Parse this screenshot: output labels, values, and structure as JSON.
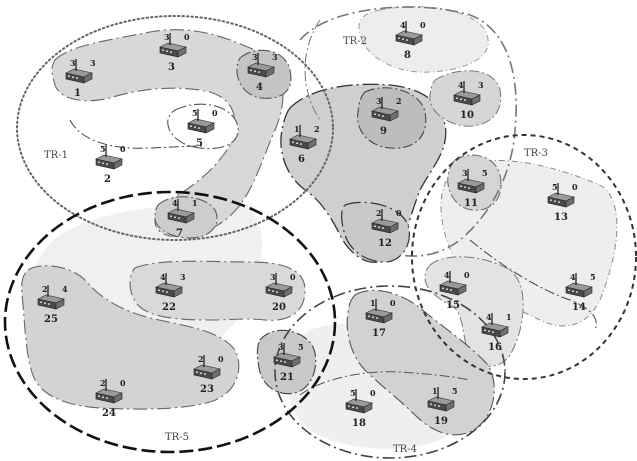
{
  "regions": [
    {
      "name": "TR-1",
      "label": "TR-1"
    },
    {
      "name": "TR-2",
      "label": "TR-2"
    },
    {
      "name": "TR-3",
      "label": "TR-3"
    },
    {
      "name": "TR-4",
      "label": "TR-4"
    },
    {
      "name": "TR-5",
      "label": "TR-5"
    }
  ],
  "nodes": [
    {
      "id": "1",
      "left": "3",
      "right": "3"
    },
    {
      "id": "2",
      "left": "5",
      "right": "0"
    },
    {
      "id": "3",
      "left": "3",
      "right": "0"
    },
    {
      "id": "4",
      "left": "3",
      "right": "3"
    },
    {
      "id": "5",
      "left": "5",
      "right": "0"
    },
    {
      "id": "6",
      "left": "1",
      "right": "2"
    },
    {
      "id": "7",
      "left": "4",
      "right": "1"
    },
    {
      "id": "8",
      "left": "4",
      "right": "0"
    },
    {
      "id": "9",
      "left": "3",
      "right": "2"
    },
    {
      "id": "10",
      "left": "4",
      "right": "3"
    },
    {
      "id": "11",
      "left": "3",
      "right": "5"
    },
    {
      "id": "12",
      "left": "2",
      "right": "0"
    },
    {
      "id": "13",
      "left": "5",
      "right": "0"
    },
    {
      "id": "14",
      "left": "4",
      "right": "5"
    },
    {
      "id": "15",
      "left": "4",
      "right": "0"
    },
    {
      "id": "16",
      "left": "4",
      "right": "1"
    },
    {
      "id": "17",
      "left": "1",
      "right": "0"
    },
    {
      "id": "18",
      "left": "5",
      "right": "0"
    },
    {
      "id": "19",
      "left": "1",
      "right": "5"
    },
    {
      "id": "20",
      "left": "3",
      "right": "0"
    },
    {
      "id": "21",
      "left": "3",
      "right": "5"
    },
    {
      "id": "22",
      "left": "4",
      "right": "3"
    },
    {
      "id": "23",
      "left": "2",
      "right": "0"
    },
    {
      "id": "24",
      "left": "2",
      "right": "0"
    },
    {
      "id": "25",
      "left": "2",
      "right": "4"
    }
  ]
}
